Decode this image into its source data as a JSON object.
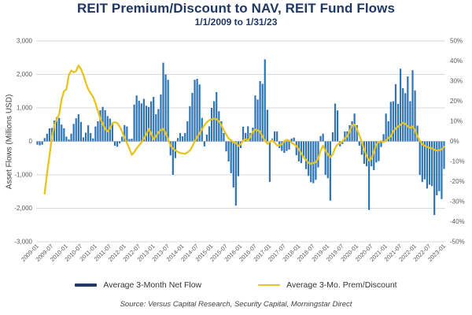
{
  "page": {
    "background": "#ffffff"
  },
  "chart": {
    "title": "REIT Premium/Discount to NAV, REIT Fund Flows",
    "subtitle": "1/1/2009 to 1/31/23",
    "left_axis_title": "Asset Flows (Millions USD)",
    "source": "Source: Versus Capital Research, Security Capital, Morningstar Direct",
    "legend": [
      {
        "label": "Average 3-Month Net Flow",
        "swatch_color": "#1F3864",
        "type": "bar"
      },
      {
        "label": "Average 3-Mo. Prem/Discount",
        "swatch_color": "#E7C41E",
        "type": "line"
      }
    ]
  },
  "colors": {
    "title_navy": "#1F3864",
    "bar_blue": "#2E74B5",
    "line_yellow": "#E7C41E",
    "gridline_gray": "#D9D9D9",
    "axis_text_gray": "#595959"
  },
  "chart_data": {
    "type": "bar",
    "subtype": "combo bar + line, dual axis, monthly 2009-01 through 2023-01",
    "x_start": "2009-01",
    "x_end": "2023-01",
    "x_tick_labels": [
      "2009-01",
      "2009-07",
      "2010-01",
      "2010-07",
      "2011-01",
      "2011-07",
      "2012-01",
      "2012-07",
      "2013-01",
      "2013-07",
      "2014-01",
      "2014-07",
      "2015-01",
      "2015-07",
      "2016-01",
      "2016-07",
      "2017-01",
      "2017-07",
      "2018-01",
      "2018-07",
      "2019-01",
      "2019-07",
      "2020-01",
      "2020-07",
      "2021-01",
      "2021-07",
      "2022-01",
      "2022-07",
      "2023-01"
    ],
    "title": "REIT Premium/Discount to NAV, REIT Fund Flows",
    "subtitle": "1/1/2009 to 1/31/23",
    "left_axis": {
      "label": "Asset Flows (Millions USD)",
      "min": -3000,
      "max": 3000,
      "tick_labels": [
        "3,000",
        "2,000",
        "1,000",
        "0",
        "-1,000",
        "-2,000",
        "-3,000"
      ]
    },
    "right_axis": {
      "label": "",
      "min": -50,
      "max": 50,
      "unit": "%",
      "tick_labels": [
        "50%",
        "40%",
        "30%",
        "20%",
        "10%",
        "0%",
        "-10%",
        "-20%",
        "-30%",
        "-40%",
        "-50%"
      ]
    },
    "grid": "horizontal only",
    "legend_position": "bottom",
    "series": [
      {
        "name": "Average 3-Month Net Flow",
        "type": "bar",
        "axis": "left",
        "color": "#2E74B5",
        "values": [
          -100,
          -120,
          -100,
          100,
          230,
          390,
          400,
          620,
          720,
          700,
          500,
          390,
          140,
          60,
          230,
          520,
          690,
          810,
          580,
          120,
          260,
          480,
          250,
          90,
          445,
          600,
          930,
          1030,
          930,
          755,
          680,
          525,
          -130,
          -160,
          -60,
          140,
          485,
          445,
          70,
          80,
          1100,
          1370,
          1215,
          1135,
          1270,
          1065,
          1030,
          1195,
          1330,
          810,
          965,
          1400,
          2350,
          2000,
          1840,
          -420,
          -1000,
          -500,
          100,
          250,
          150,
          250,
          600,
          1050,
          1450,
          1840,
          1870,
          1700,
          700,
          -150,
          200,
          450,
          1000,
          1200,
          1470,
          900,
          600,
          250,
          -300,
          -600,
          -950,
          -1380,
          -1920,
          -1040,
          -200,
          440,
          250,
          450,
          250,
          410,
          1370,
          1250,
          1800,
          1720,
          2450,
          945,
          -1210,
          85,
          295,
          295,
          -200,
          -285,
          -345,
          -285,
          -245,
          85,
          110,
          -415,
          -600,
          -650,
          -500,
          -830,
          -1030,
          -1220,
          -1250,
          -1150,
          -780,
          160,
          230,
          -1000,
          -1100,
          -1770,
          270,
          1130,
          925,
          -150,
          -80,
          295,
          300,
          485,
          600,
          830,
          485,
          -130,
          -400,
          -670,
          -745,
          -2050,
          -745,
          -860,
          -630,
          -590,
          -170,
          215,
          830,
          600,
          1180,
          1200,
          1710,
          1120,
          2170,
          1590,
          1440,
          1940,
          1200,
          2125,
          1520,
          470,
          -1000,
          -1215,
          -1135,
          -1410,
          -1295,
          -1335,
          -2200,
          -1610,
          -1490,
          -1725,
          -825
        ]
      },
      {
        "name": "Average 3-Mo. Prem/Discount",
        "type": "line",
        "axis": "right",
        "color": "#E7C41E",
        "values": [
          null,
          null,
          null,
          -26,
          -16,
          -7,
          2,
          8,
          11,
          13.5,
          21,
          25,
          26,
          33,
          35.3,
          34.4,
          35,
          37.8,
          36,
          33.1,
          29.2,
          26,
          24,
          22.2,
          19,
          15.1,
          11.3,
          8.7,
          6.2,
          4.9,
          6.5,
          9.1,
          9.6,
          9.1,
          7.4,
          4.9,
          1.9,
          -0.9,
          -3.5,
          -6.7,
          -5.4,
          -3.5,
          -2,
          -0.5,
          1.5,
          3.5,
          6.2,
          4,
          1,
          2.5,
          4.5,
          5.8,
          6.2,
          4,
          1,
          -2.2,
          -3.5,
          -4.5,
          -5.2,
          -5.8,
          -6,
          -6.2,
          -5.5,
          -4.5,
          -2.5,
          0,
          2,
          4,
          6,
          8,
          9.5,
          10.5,
          11,
          11.3,
          11,
          10,
          8,
          5.5,
          3.5,
          1.5,
          0.5,
          -0.5,
          -0.8,
          -2.3,
          -1.5,
          0.5,
          1,
          0.4,
          2.3,
          4.9,
          5.8,
          5.5,
          4.9,
          2.3,
          0.4,
          -1.2,
          -0.3,
          0.6,
          -0.7,
          -2,
          -1.9,
          -1.5,
          0.1,
          0.8,
          0.4,
          -0.6,
          -1.4,
          -2.4,
          -4,
          -6,
          -7.9,
          -9.3,
          -10.8,
          -11.1,
          -10.8,
          -10.3,
          -8.5,
          -4.6,
          -2.2,
          -4.5,
          -6.5,
          -7.9,
          -6.5,
          -3.3,
          -1.5,
          -0.9,
          0,
          1.5,
          2.6,
          5,
          8,
          8.3,
          6.2,
          3,
          -0.3,
          -4.1,
          -7.3,
          -9.5,
          -8.6,
          -5.4,
          -1.5,
          -0.3,
          0.1,
          -0.3,
          0.4,
          1.7,
          2.5,
          5,
          6.4,
          7.3,
          8.3,
          9.2,
          8.7,
          7.5,
          6.8,
          7.4,
          5.5,
          2.5,
          0.4,
          -1.5,
          -2.2,
          -2.8,
          -3.2,
          -3.5,
          -4.2,
          -4.6,
          -4.3,
          -4,
          -2.7
        ]
      }
    ]
  }
}
